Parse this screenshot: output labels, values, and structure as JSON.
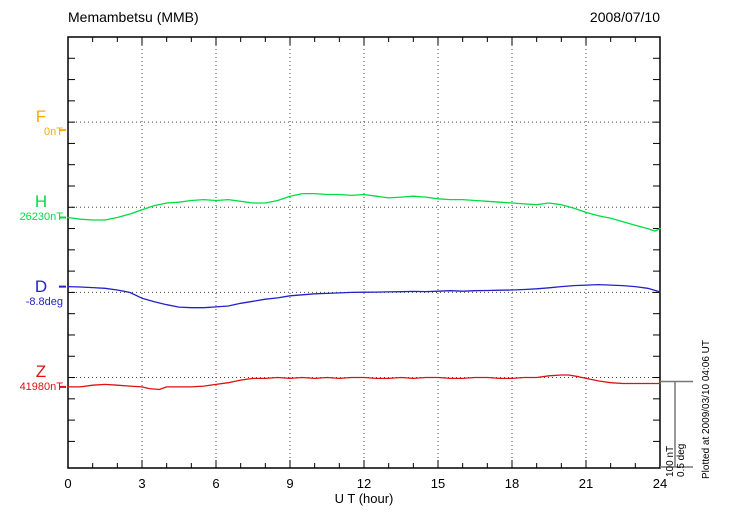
{
  "header": {
    "title": "Memambetsu (MMB)",
    "date": "2008/07/10"
  },
  "axis": {
    "x_label": "U T (hour)",
    "x_ticks": [
      "0",
      "3",
      "6",
      "9",
      "12",
      "15",
      "18",
      "21",
      "24"
    ],
    "x_min": 0,
    "x_max": 24
  },
  "scale_bar": {
    "line1": "100 nT",
    "line2": "0.5 deg"
  },
  "footer_note": "Plotted at 2009/03/10 04:06 UT",
  "colors": {
    "F": "#ffaa00",
    "H": "#00dd44",
    "D": "#2222cc",
    "Z": "#dd1111",
    "grid": "#444444",
    "frame": "#000000",
    "scalebar": "#777777"
  },
  "components": [
    {
      "id": "F",
      "label": "F",
      "value_label": "0nT"
    },
    {
      "id": "H",
      "label": "H",
      "value_label": "26230nT"
    },
    {
      "id": "D",
      "label": "D",
      "value_label": "-8.8deg"
    },
    {
      "id": "Z",
      "label": "Z",
      "value_label": "41980nT"
    }
  ],
  "chart_data": {
    "type": "line",
    "title": "Memambetsu (MMB) magnetogram, 2008/07/10",
    "xlabel": "U T (hour)",
    "x_range": [
      0,
      24
    ],
    "x_gridline_step_hours": 3,
    "grid": "dotted",
    "scale": {
      "nT_per_division": 100,
      "deg_per_division": 0.5
    },
    "series": [
      {
        "name": "F",
        "unit": "nT",
        "baseline": 0,
        "color": "#ffaa00",
        "points": []
      },
      {
        "name": "H",
        "unit": "nT",
        "baseline": 26230,
        "color": "#00dd44",
        "points": [
          [
            0,
            26218
          ],
          [
            0.5,
            26216
          ],
          [
            1,
            26215
          ],
          [
            1.5,
            26215
          ],
          [
            2,
            26218
          ],
          [
            2.5,
            26222
          ],
          [
            3,
            26227
          ],
          [
            3.5,
            26232
          ],
          [
            4,
            26235
          ],
          [
            4.5,
            26236
          ],
          [
            5,
            26238
          ],
          [
            5.5,
            26239
          ],
          [
            6,
            26238
          ],
          [
            6.5,
            26239
          ],
          [
            7,
            26237
          ],
          [
            7.5,
            26235
          ],
          [
            8,
            26235
          ],
          [
            8.5,
            26238
          ],
          [
            9,
            26243
          ],
          [
            9.5,
            26246
          ],
          [
            10,
            26246
          ],
          [
            10.5,
            26245
          ],
          [
            11,
            26245
          ],
          [
            11.5,
            26244
          ],
          [
            12,
            26245
          ],
          [
            12.5,
            26243
          ],
          [
            13,
            26241
          ],
          [
            13.5,
            26242
          ],
          [
            14,
            26243
          ],
          [
            14.5,
            26242
          ],
          [
            15,
            26240
          ],
          [
            15.5,
            26239
          ],
          [
            16,
            26239
          ],
          [
            16.5,
            26238
          ],
          [
            17,
            26237
          ],
          [
            17.5,
            26236
          ],
          [
            18,
            26235
          ],
          [
            18.5,
            26234
          ],
          [
            19,
            26233
          ],
          [
            19.5,
            26235
          ],
          [
            20,
            26233
          ],
          [
            20.5,
            26229
          ],
          [
            21,
            26224
          ],
          [
            21.5,
            26220
          ],
          [
            22,
            26217
          ],
          [
            22.5,
            26213
          ],
          [
            23,
            26209
          ],
          [
            23.5,
            26205
          ],
          [
            23.8,
            26202
          ],
          [
            24,
            26205
          ]
        ]
      },
      {
        "name": "D",
        "unit": "deg",
        "baseline": -8.8,
        "color": "#2222cc",
        "points": [
          [
            0,
            -8.766
          ],
          [
            0.5,
            -8.768
          ],
          [
            1,
            -8.772
          ],
          [
            1.5,
            -8.776
          ],
          [
            2,
            -8.786
          ],
          [
            2.5,
            -8.8
          ],
          [
            3,
            -8.834
          ],
          [
            3.5,
            -8.855
          ],
          [
            4,
            -8.872
          ],
          [
            4.5,
            -8.886
          ],
          [
            5,
            -8.89
          ],
          [
            5.5,
            -8.89
          ],
          [
            6,
            -8.885
          ],
          [
            6.5,
            -8.88
          ],
          [
            7,
            -8.864
          ],
          [
            7.5,
            -8.852
          ],
          [
            8,
            -8.84
          ],
          [
            8.5,
            -8.832
          ],
          [
            9,
            -8.82
          ],
          [
            9.5,
            -8.814
          ],
          [
            10,
            -8.808
          ],
          [
            10.5,
            -8.806
          ],
          [
            11,
            -8.803
          ],
          [
            11.5,
            -8.8
          ],
          [
            12,
            -8.799
          ],
          [
            12.5,
            -8.798
          ],
          [
            13,
            -8.797
          ],
          [
            13.5,
            -8.796
          ],
          [
            14,
            -8.794
          ],
          [
            14.5,
            -8.795
          ],
          [
            15,
            -8.793
          ],
          [
            15.5,
            -8.79
          ],
          [
            16,
            -8.793
          ],
          [
            16.5,
            -8.79
          ],
          [
            17,
            -8.789
          ],
          [
            17.5,
            -8.787
          ],
          [
            18,
            -8.786
          ],
          [
            18.5,
            -8.783
          ],
          [
            19,
            -8.779
          ],
          [
            19.5,
            -8.773
          ],
          [
            20,
            -8.766
          ],
          [
            20.5,
            -8.76
          ],
          [
            21,
            -8.757
          ],
          [
            21.5,
            -8.754
          ],
          [
            22,
            -8.757
          ],
          [
            22.5,
            -8.76
          ],
          [
            23,
            -8.766
          ],
          [
            23.5,
            -8.776
          ],
          [
            24,
            -8.797
          ]
        ]
      },
      {
        "name": "Z",
        "unit": "nT",
        "baseline": 41980,
        "color": "#dd1111",
        "points": [
          [
            0,
            41969
          ],
          [
            0.5,
            41969
          ],
          [
            1,
            41971
          ],
          [
            1.5,
            41972
          ],
          [
            2,
            41971
          ],
          [
            2.5,
            41970
          ],
          [
            3,
            41969
          ],
          [
            3.3,
            41967
          ],
          [
            3.7,
            41966
          ],
          [
            4,
            41969
          ],
          [
            4.5,
            41969
          ],
          [
            5,
            41969
          ],
          [
            5.5,
            41970
          ],
          [
            6,
            41972
          ],
          [
            6.5,
            41974
          ],
          [
            7,
            41977
          ],
          [
            7.5,
            41979
          ],
          [
            8,
            41979
          ],
          [
            8.5,
            41980
          ],
          [
            9,
            41979
          ],
          [
            9.5,
            41980
          ],
          [
            10,
            41979
          ],
          [
            10.5,
            41980
          ],
          [
            11,
            41979
          ],
          [
            11.5,
            41980
          ],
          [
            12,
            41980
          ],
          [
            12.5,
            41979
          ],
          [
            13,
            41979
          ],
          [
            13.5,
            41980
          ],
          [
            14,
            41979
          ],
          [
            14.5,
            41980
          ],
          [
            15,
            41980
          ],
          [
            15.5,
            41979
          ],
          [
            16,
            41979
          ],
          [
            16.5,
            41980
          ],
          [
            17,
            41980
          ],
          [
            17.5,
            41979
          ],
          [
            18,
            41979
          ],
          [
            18.5,
            41980
          ],
          [
            19,
            41980
          ],
          [
            19.5,
            41982
          ],
          [
            20,
            41983
          ],
          [
            20.3,
            41983
          ],
          [
            20.7,
            41981
          ],
          [
            21,
            41979
          ],
          [
            21.5,
            41976
          ],
          [
            22,
            41974
          ],
          [
            22.5,
            41973
          ],
          [
            23,
            41973
          ],
          [
            23.5,
            41973
          ],
          [
            24,
            41973
          ]
        ]
      }
    ]
  }
}
